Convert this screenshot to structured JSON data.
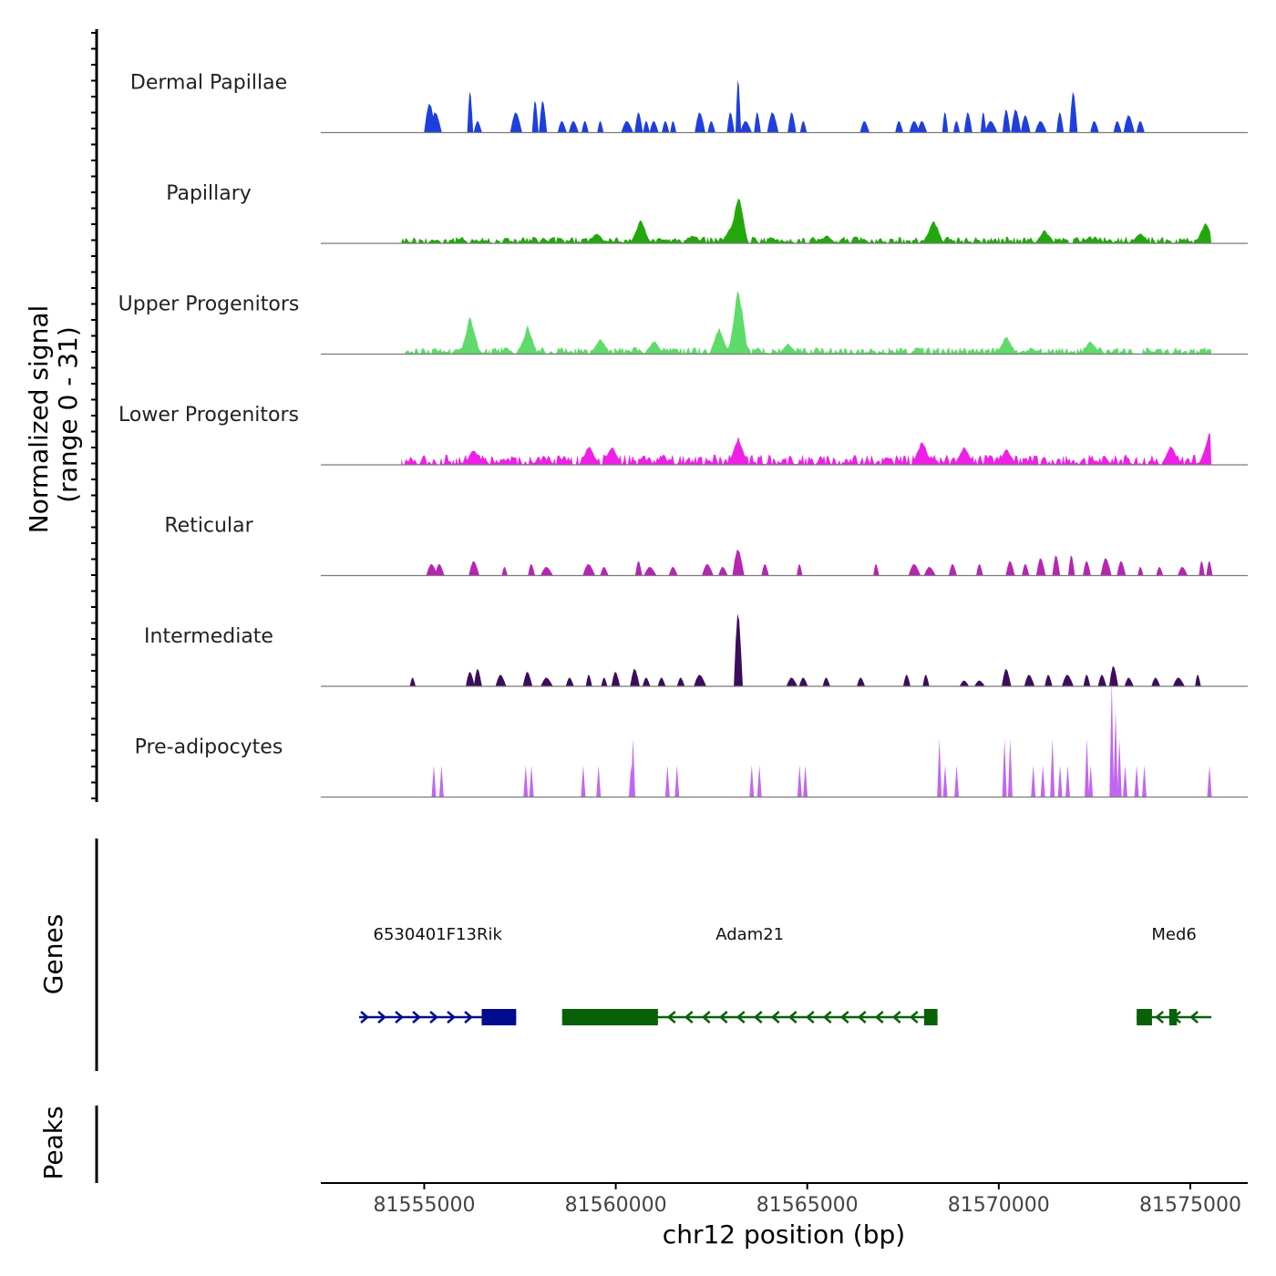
{
  "chart_data": {
    "type": "area",
    "ylabel_line1": "Normalized signal",
    "ylabel_line2": "(range 0 - 31)",
    "ylim": [
      0,
      31
    ],
    "x_range": [
      81552300,
      81576500
    ],
    "xlabel": "chr12 position (bp)",
    "x_ticks": [
      81555000,
      81560000,
      81565000,
      81570000,
      81575000
    ],
    "x_tick_labels": [
      "81555000",
      "81560000",
      "81565000",
      "81570000",
      "81575000"
    ],
    "tracks": [
      {
        "name": "Dermal Papillae",
        "color": "#1f3fdd",
        "style": "sparse",
        "peaks": [
          [
            81555150,
            10
          ],
          [
            81555300,
            7
          ],
          [
            81556200,
            14
          ],
          [
            81556400,
            4
          ],
          [
            81557400,
            7
          ],
          [
            81557900,
            11
          ],
          [
            81558100,
            11
          ],
          [
            81558600,
            4
          ],
          [
            81558900,
            4
          ],
          [
            81559200,
            4
          ],
          [
            81559600,
            4
          ],
          [
            81560300,
            4
          ],
          [
            81560600,
            7
          ],
          [
            81560800,
            4
          ],
          [
            81561000,
            4
          ],
          [
            81561300,
            4
          ],
          [
            81561500,
            4
          ],
          [
            81562200,
            7
          ],
          [
            81562500,
            4
          ],
          [
            81563000,
            7
          ],
          [
            81563200,
            18
          ],
          [
            81563400,
            4
          ],
          [
            81563700,
            7
          ],
          [
            81564100,
            7
          ],
          [
            81564600,
            7
          ],
          [
            81564900,
            4
          ],
          [
            81566500,
            4
          ],
          [
            81567400,
            4
          ],
          [
            81567800,
            4
          ],
          [
            81568000,
            4
          ],
          [
            81568600,
            7
          ],
          [
            81568900,
            4
          ],
          [
            81569200,
            7
          ],
          [
            81569600,
            7
          ],
          [
            81569800,
            4
          ],
          [
            81570200,
            8
          ],
          [
            81570450,
            8
          ],
          [
            81570700,
            6
          ],
          [
            81571100,
            4
          ],
          [
            81571600,
            7
          ],
          [
            81571950,
            14
          ],
          [
            81572500,
            4
          ],
          [
            81573100,
            4
          ],
          [
            81573400,
            6
          ],
          [
            81573700,
            4
          ]
        ],
        "dense_from": null
      },
      {
        "name": "Papillary",
        "color": "#22a80c",
        "style": "dense",
        "peaks": [
          [
            81560650,
            9
          ],
          [
            81563200,
            18
          ],
          [
            81563000,
            6
          ],
          [
            81568300,
            9
          ],
          [
            81571200,
            5
          ],
          [
            81573700,
            4
          ],
          [
            81575400,
            8
          ],
          [
            81559500,
            4
          ],
          [
            81562000,
            3
          ],
          [
            81565500,
            3
          ]
        ],
        "dense_from": 81554400,
        "baseline": 2
      },
      {
        "name": "Upper Progenitors",
        "color": "#5edb6a",
        "style": "dense",
        "peaks": [
          [
            81556200,
            14
          ],
          [
            81557700,
            10
          ],
          [
            81563200,
            25
          ],
          [
            81562700,
            10
          ],
          [
            81559600,
            6
          ],
          [
            81561000,
            5
          ],
          [
            81570200,
            7
          ],
          [
            81572400,
            5
          ],
          [
            81564500,
            4
          ]
        ],
        "dense_from": 81554500,
        "baseline": 2
      },
      {
        "name": "Lower Progenitors",
        "color": "#ee20e6",
        "style": "dense",
        "peaks": [
          [
            81563200,
            10
          ],
          [
            81559300,
            7
          ],
          [
            81559900,
            7
          ],
          [
            81568000,
            9
          ],
          [
            81569100,
            7
          ],
          [
            81570200,
            6
          ],
          [
            81574500,
            7
          ],
          [
            81575500,
            12
          ],
          [
            81556300,
            6
          ]
        ],
        "dense_from": 81554400,
        "baseline": 3
      },
      {
        "name": "Reticular",
        "color": "#b626b2",
        "style": "sparse",
        "peaks": [
          [
            81555200,
            4
          ],
          [
            81555400,
            4
          ],
          [
            81556300,
            5
          ],
          [
            81557100,
            3
          ],
          [
            81557800,
            4
          ],
          [
            81558200,
            3
          ],
          [
            81559300,
            4
          ],
          [
            81559700,
            3
          ],
          [
            81560600,
            5
          ],
          [
            81560900,
            3
          ],
          [
            81561500,
            3
          ],
          [
            81562400,
            4
          ],
          [
            81562800,
            3
          ],
          [
            81563200,
            9
          ],
          [
            81563900,
            4
          ],
          [
            81564800,
            4
          ],
          [
            81566800,
            4
          ],
          [
            81567800,
            4
          ],
          [
            81568200,
            3
          ],
          [
            81568800,
            4
          ],
          [
            81569500,
            4
          ],
          [
            81570300,
            5
          ],
          [
            81570700,
            4
          ],
          [
            81571100,
            6
          ],
          [
            81571500,
            7
          ],
          [
            81571900,
            7
          ],
          [
            81572300,
            5
          ],
          [
            81572800,
            6
          ],
          [
            81573200,
            5
          ],
          [
            81573700,
            3
          ],
          [
            81574200,
            3
          ],
          [
            81574800,
            3
          ],
          [
            81575300,
            5
          ],
          [
            81575500,
            5
          ]
        ],
        "dense_from": null
      },
      {
        "name": "Intermediate",
        "color": "#3c0d5c",
        "style": "sparse",
        "peaks": [
          [
            81554700,
            3
          ],
          [
            81556200,
            5
          ],
          [
            81556400,
            6
          ],
          [
            81557000,
            4
          ],
          [
            81557700,
            5
          ],
          [
            81558200,
            3
          ],
          [
            81558800,
            3
          ],
          [
            81559300,
            4
          ],
          [
            81559700,
            3
          ],
          [
            81560000,
            5
          ],
          [
            81560500,
            6
          ],
          [
            81560800,
            3
          ],
          [
            81561200,
            3
          ],
          [
            81561700,
            3
          ],
          [
            81562200,
            4
          ],
          [
            81563200,
            25
          ],
          [
            81564600,
            3
          ],
          [
            81564900,
            3
          ],
          [
            81565500,
            3
          ],
          [
            81566400,
            3
          ],
          [
            81567600,
            4
          ],
          [
            81568100,
            4
          ],
          [
            81569100,
            2
          ],
          [
            81569500,
            2
          ],
          [
            81570200,
            6
          ],
          [
            81570800,
            4
          ],
          [
            81571300,
            4
          ],
          [
            81571800,
            4
          ],
          [
            81572300,
            4
          ],
          [
            81572700,
            4
          ],
          [
            81573000,
            7
          ],
          [
            81573400,
            3
          ],
          [
            81574100,
            3
          ],
          [
            81574700,
            3
          ],
          [
            81575200,
            4
          ]
        ],
        "dense_from": null
      },
      {
        "name": "Pre-adipocytes",
        "color": "#c266f0",
        "style": "spikes",
        "peaks": [
          [
            81555250,
            11
          ],
          [
            81555450,
            11
          ],
          [
            81557650,
            11
          ],
          [
            81557800,
            11
          ],
          [
            81559150,
            11
          ],
          [
            81559550,
            11
          ],
          [
            81560450,
            20
          ],
          [
            81560400,
            11
          ],
          [
            81561350,
            11
          ],
          [
            81561600,
            11
          ],
          [
            81563550,
            11
          ],
          [
            81563750,
            11
          ],
          [
            81564800,
            11
          ],
          [
            81564950,
            11
          ],
          [
            81568450,
            20
          ],
          [
            81568600,
            11
          ],
          [
            81568900,
            11
          ],
          [
            81570150,
            20
          ],
          [
            81570300,
            20
          ],
          [
            81570900,
            11
          ],
          [
            81571150,
            11
          ],
          [
            81571400,
            20
          ],
          [
            81571600,
            11
          ],
          [
            81571800,
            11
          ],
          [
            81572300,
            20
          ],
          [
            81572400,
            11
          ],
          [
            81572950,
            40
          ],
          [
            81573050,
            30
          ],
          [
            81573150,
            20
          ],
          [
            81573300,
            11
          ],
          [
            81573600,
            11
          ],
          [
            81573800,
            11
          ],
          [
            81575500,
            11
          ]
        ],
        "dense_from": null
      }
    ],
    "genes_label": "Genes",
    "genes": [
      {
        "name": "6530401F13Rik",
        "start": 81553300,
        "end": 81557400,
        "strand": "+",
        "color": "#000b8f",
        "exons": [
          [
            81556500,
            81557400
          ]
        ]
      },
      {
        "name": "Adam21",
        "start": 81558600,
        "end": 81568400,
        "strand": "-",
        "color": "#086108",
        "exons": [
          [
            81558600,
            81561100
          ],
          [
            81568050,
            81568400
          ]
        ]
      },
      {
        "name": "Med6",
        "start": 81573600,
        "end": 81575550,
        "strand": "-",
        "color": "#086108",
        "exons": [
          [
            81573600,
            81574000
          ],
          [
            81574450,
            81574650
          ]
        ]
      }
    ],
    "peaks_label": "Peaks"
  }
}
